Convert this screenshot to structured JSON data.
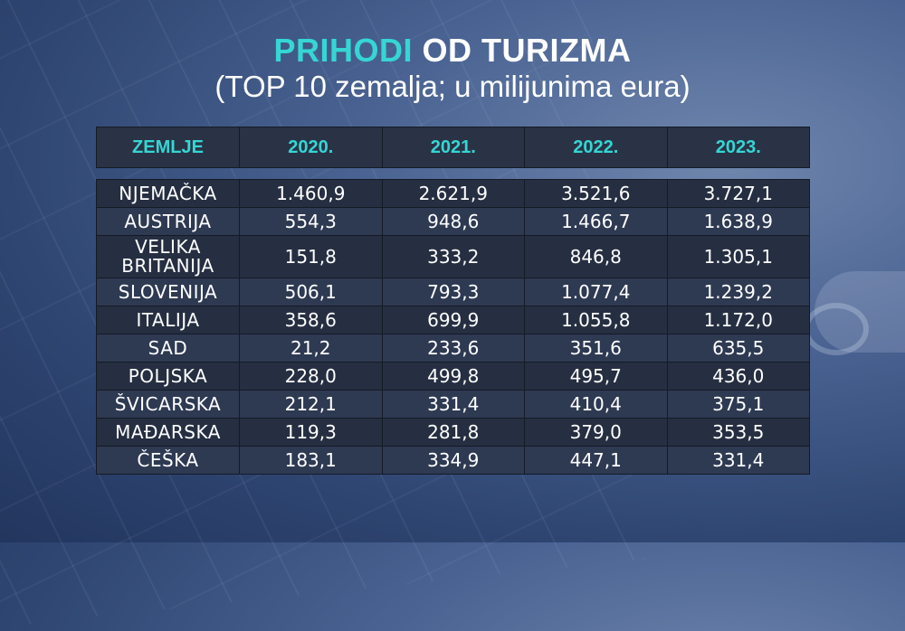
{
  "title": {
    "accent": "PRIHODI",
    "rest": " OD TURIZMA",
    "subtitle": "(TOP 10 zemalja; u milijunima eura)"
  },
  "colors": {
    "accent": "#35d6d4",
    "header_bg": "#2a3345",
    "row_dark": "#262f41",
    "row_light": "#2e3a52",
    "background": "#3a5383"
  },
  "chart_data": {
    "type": "table",
    "title": "PRIHODI OD TURIZMA",
    "subtitle": "(TOP 10 zemalja; u milijunima eura)",
    "columns": [
      "ZEMLJE",
      "2020.",
      "2021.",
      "2022.",
      "2023."
    ],
    "rows": [
      [
        "NJEMAČKA",
        "1.460,9",
        "2.621,9",
        "3.521,6",
        "3.727,1"
      ],
      [
        "AUSTRIJA",
        "554,3",
        "948,6",
        "1.466,7",
        "1.638,9"
      ],
      [
        "VELIKA BRITANIJA",
        "151,8",
        "333,2",
        "846,8",
        "1.305,1"
      ],
      [
        "SLOVENIJA",
        "506,1",
        "793,3",
        "1.077,4",
        "1.239,2"
      ],
      [
        "ITALIJA",
        "358,6",
        "699,9",
        "1.055,8",
        "1.172,0"
      ],
      [
        "SAD",
        "21,2",
        "233,6",
        "351,6",
        "635,5"
      ],
      [
        "POLJSKA",
        "228,0",
        "499,8",
        "495,7",
        "436,0"
      ],
      [
        "ŠVICARSKA",
        "212,1",
        "331,4",
        "410,4",
        "375,1"
      ],
      [
        "MAĐARSKA",
        "119,3",
        "281,8",
        "379,0",
        "353,5"
      ],
      [
        "ČEŠKA",
        "183,1",
        "334,9",
        "447,1",
        "331,4"
      ]
    ]
  }
}
